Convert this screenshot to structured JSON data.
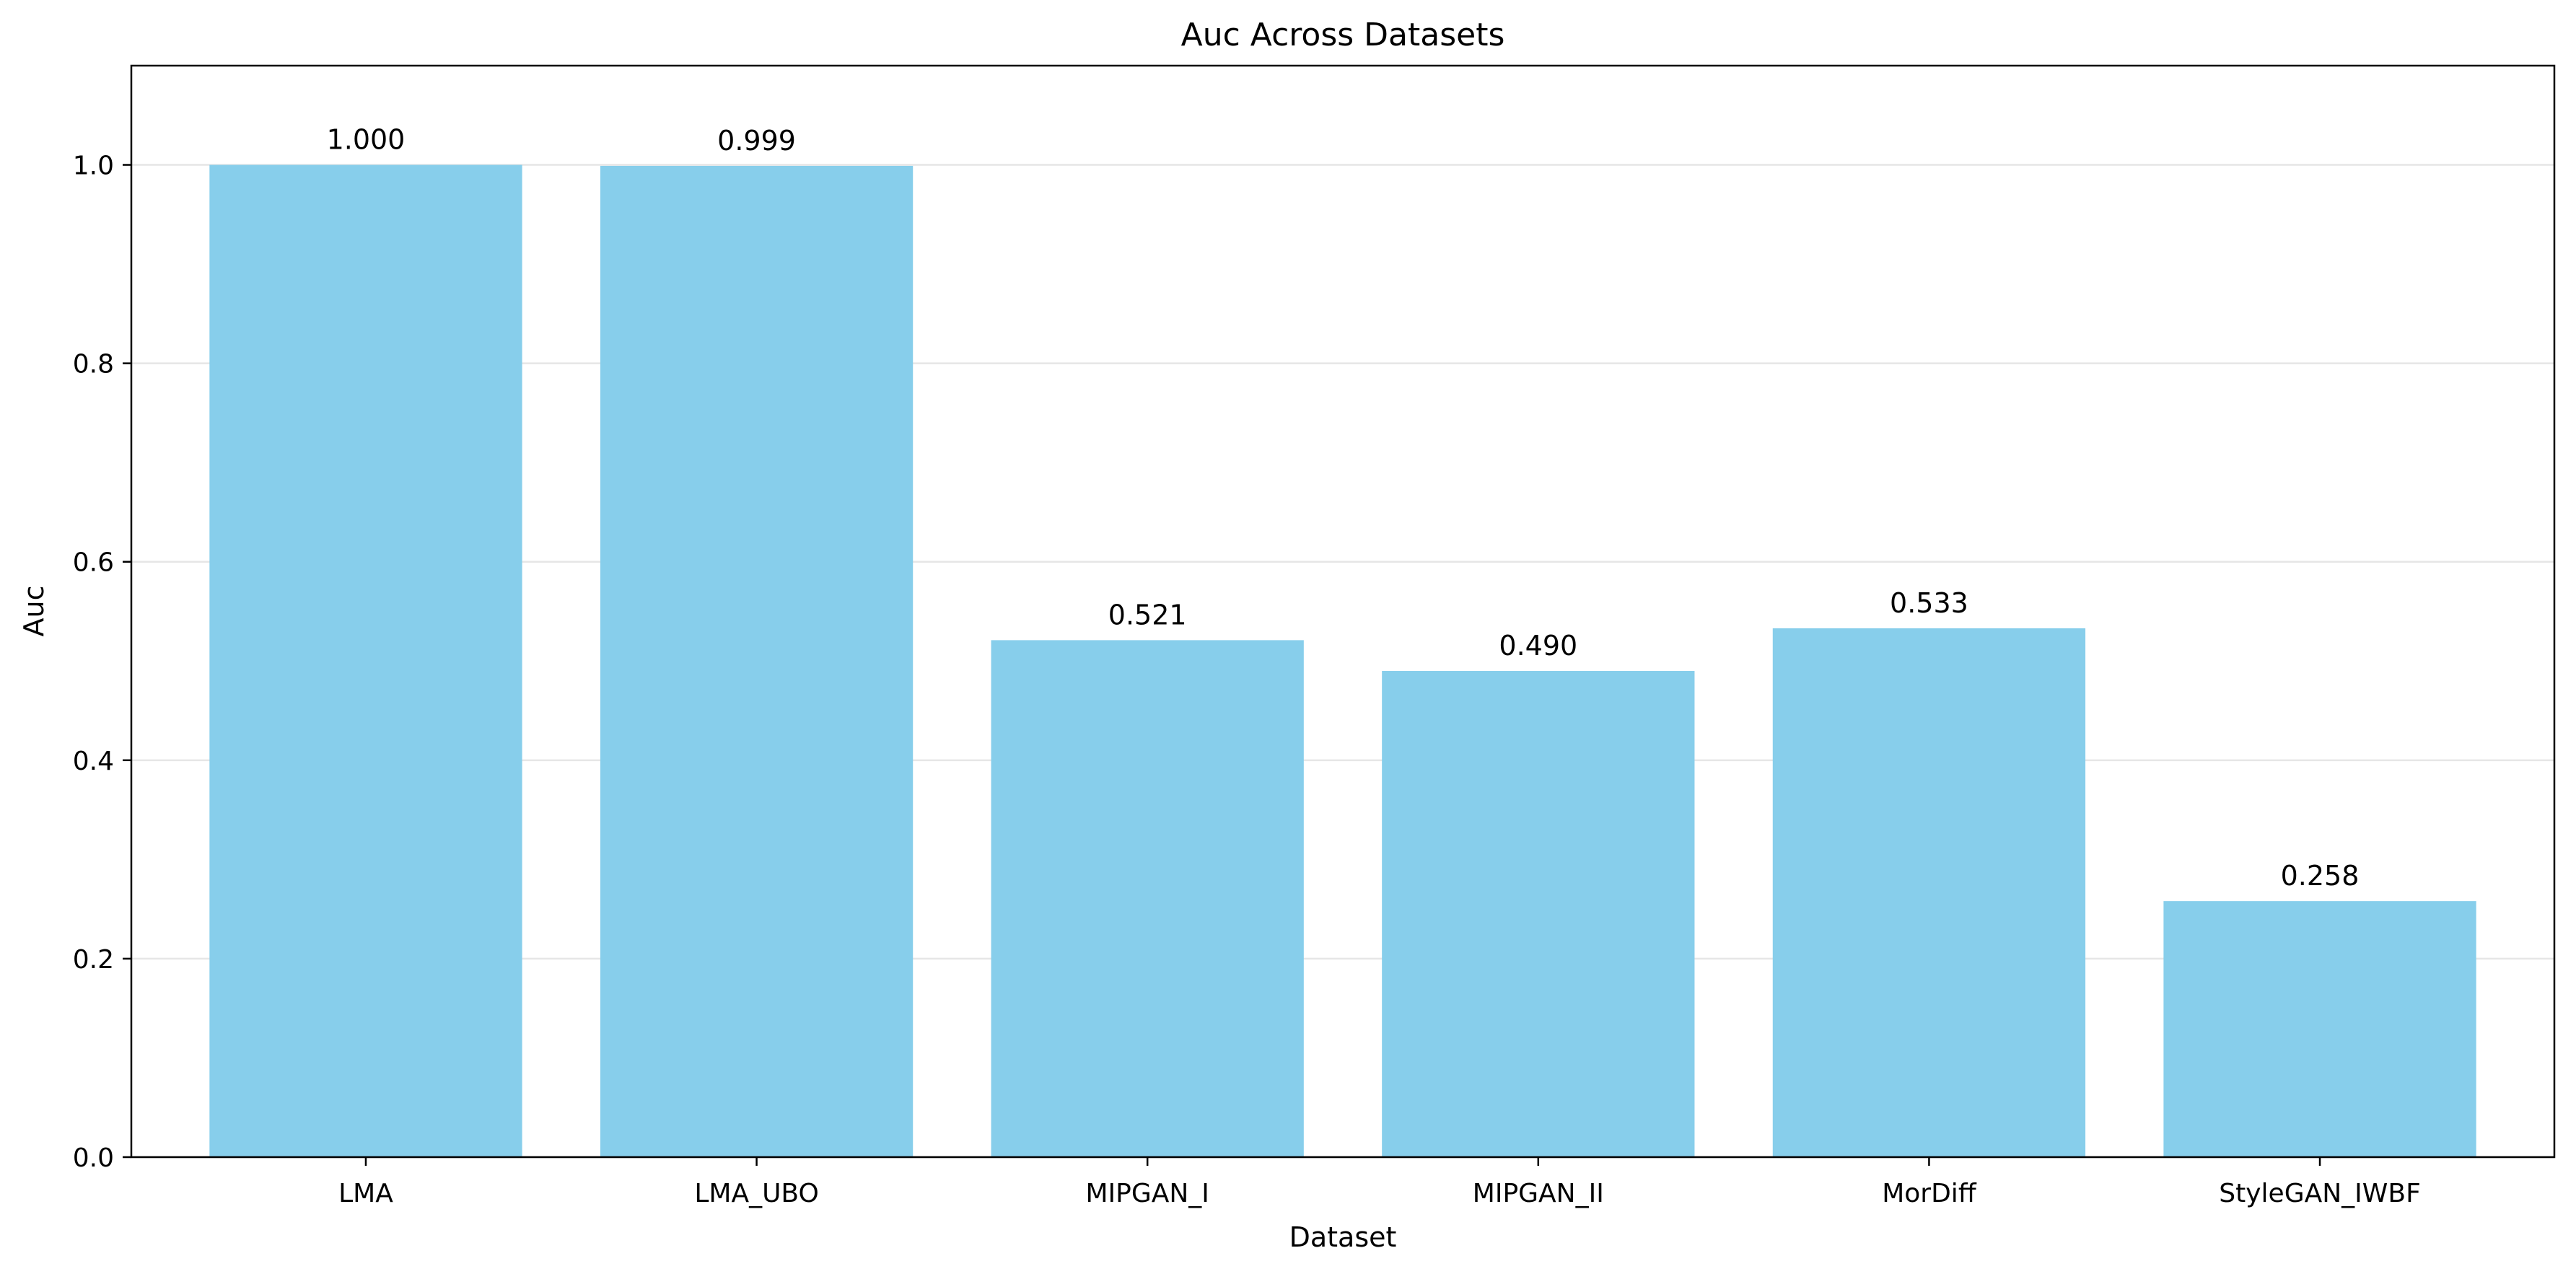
{
  "chart_data": {
    "type": "bar",
    "title": "Auc Across Datasets",
    "xlabel": "Dataset",
    "ylabel": "Auc",
    "categories": [
      "LMA",
      "LMA_UBO",
      "MIPGAN_I",
      "MIPGAN_II",
      "MorDiff",
      "StyleGAN_IWBF"
    ],
    "values": [
      1.0,
      0.999,
      0.521,
      0.49,
      0.533,
      0.258
    ],
    "value_labels": [
      "1.000",
      "0.999",
      "0.521",
      "0.490",
      "0.533",
      "0.258"
    ],
    "ylim": [
      0,
      1.1
    ],
    "yticks": [
      0.0,
      0.2,
      0.4,
      0.6,
      0.8,
      1.0
    ],
    "ytick_labels": [
      "0.0",
      "0.2",
      "0.4",
      "0.6",
      "0.8",
      "1.0"
    ],
    "grid": "y",
    "legend": "none",
    "bar_color": "#87CEEB"
  }
}
